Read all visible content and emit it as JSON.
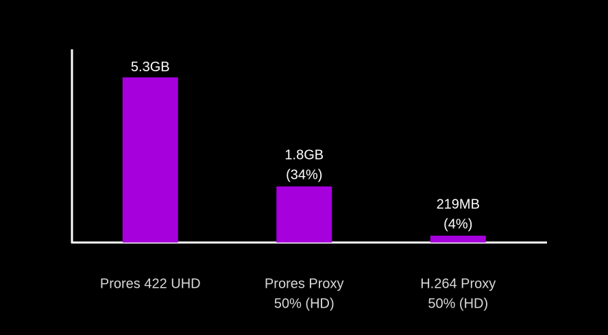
{
  "chart_data": {
    "type": "bar",
    "categories": [
      [
        "Prores 422 UHD"
      ],
      [
        "Prores Proxy",
        "50% (HD)"
      ],
      [
        "H.264 Proxy",
        "50% (HD)"
      ]
    ],
    "values": [
      5.3,
      1.8,
      0.219
    ],
    "value_labels": [
      "5.3GB",
      "1.8GB",
      "219MB"
    ],
    "percent_labels": [
      null,
      "(34%)",
      "(4%)"
    ],
    "color": "#a600dc",
    "ylim": [
      0,
      6.2
    ]
  }
}
